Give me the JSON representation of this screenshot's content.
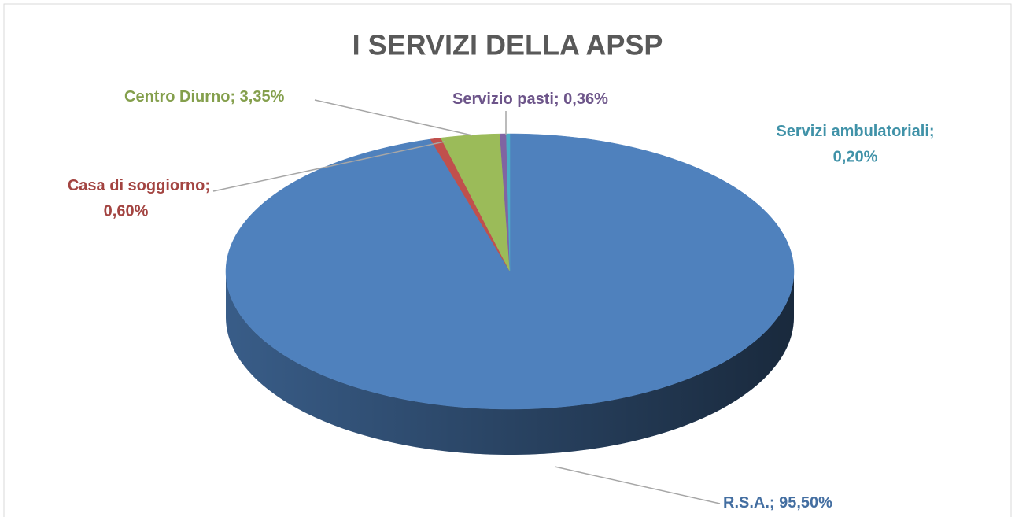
{
  "chart_data": {
    "type": "pie3d",
    "title": "I SERVIZI DELLA APSP",
    "categories": [
      "R.S.A.",
      "Casa di soggiorno",
      "Centro Diurno",
      "Servizio pasti",
      "Servizi ambulatoriali"
    ],
    "values": [
      95.5,
      0.6,
      3.35,
      0.36,
      0.2
    ],
    "value_labels": [
      "95,50%",
      "0,60%",
      "3,35%",
      "0,36%",
      "0,20%"
    ],
    "label_separator": "; ",
    "colors": [
      "#4f81bd",
      "#c0504d",
      "#9bbb59",
      "#8064a2",
      "#4bacc6"
    ]
  }
}
